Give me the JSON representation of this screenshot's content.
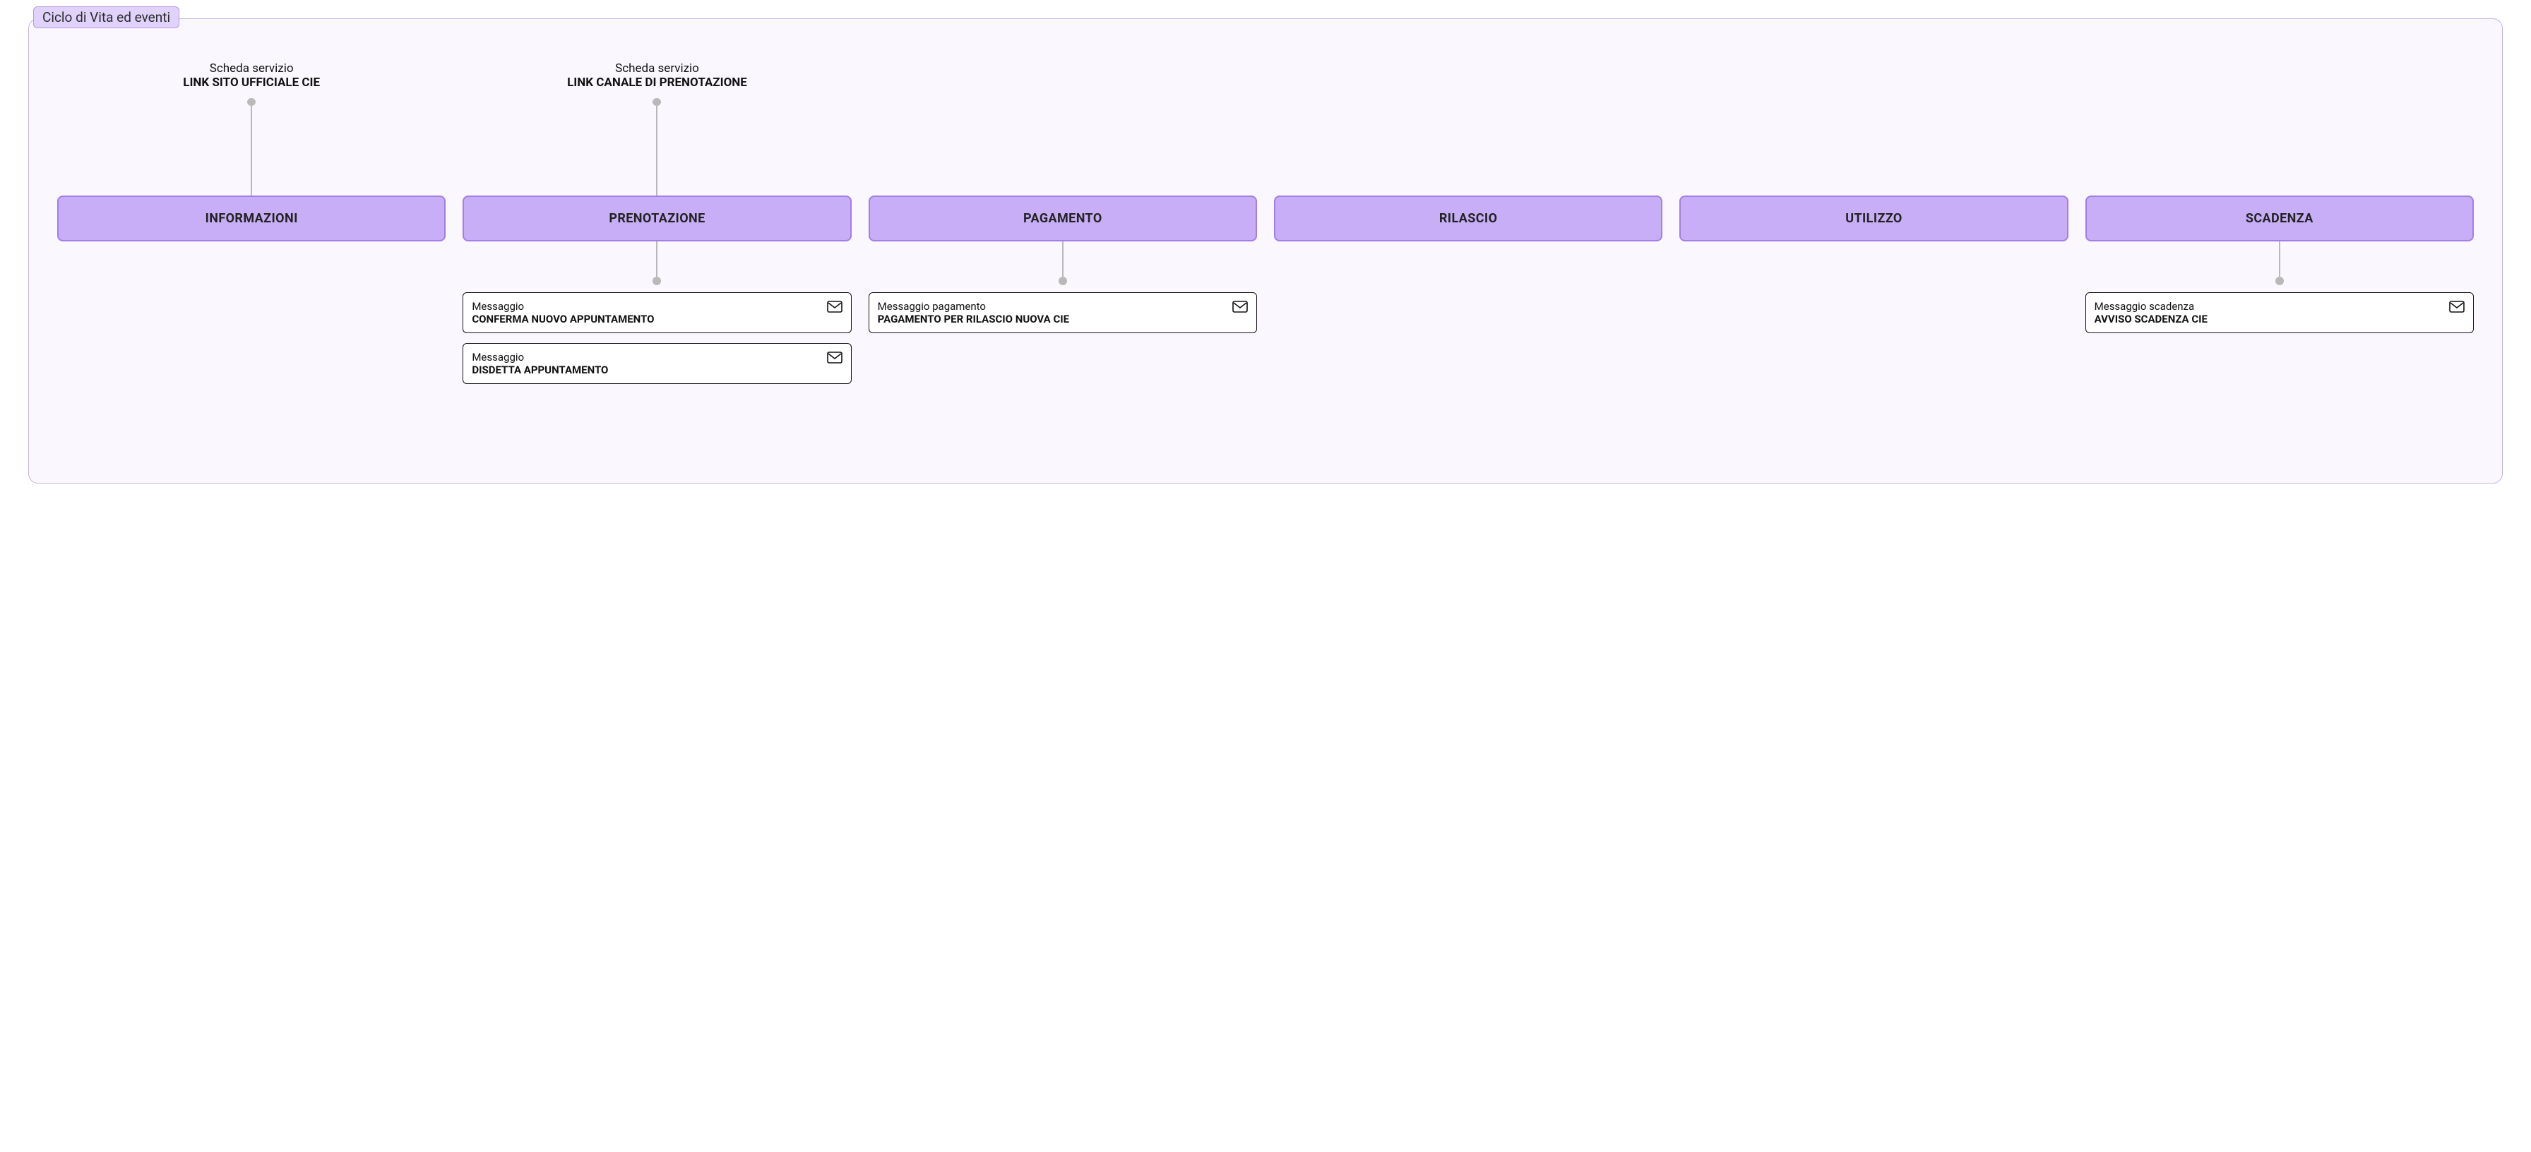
{
  "diagram": {
    "title": "Ciclo di Vita ed eventi",
    "colors": {
      "frame_bg": "#faf7ff",
      "frame_border": "#c4b3e6",
      "title_bg": "#e0d2fb",
      "title_border": "#b49be0",
      "stage_bg": "#c8aef7",
      "stage_border": "#a27ee6",
      "connector": "#b9b9b9",
      "msg_border": "#111111",
      "msg_bg": "#ffffff",
      "text": "#111111"
    },
    "stages": [
      {
        "id": "informazioni",
        "label": "INFORMAZIONI",
        "top": {
          "sub": "Scheda servizio",
          "main": "LINK SITO UFFICIALE CIE"
        },
        "bottom": []
      },
      {
        "id": "prenotazione",
        "label": "PRENOTAZIONE",
        "top": {
          "sub": "Scheda servizio",
          "main": "LINK CANALE DI PRENOTAZIONE"
        },
        "bottom": [
          {
            "kind": "Messaggio",
            "title": "CONFERMA NUOVO APPUNTAMENTO"
          },
          {
            "kind": "Messaggio",
            "title": "DISDETTA APPUNTAMENTO"
          }
        ]
      },
      {
        "id": "pagamento",
        "label": "PAGAMENTO",
        "top": null,
        "bottom": [
          {
            "kind": "Messaggio pagamento",
            "title": "PAGAMENTO PER RILASCIO NUOVA CIE"
          }
        ]
      },
      {
        "id": "rilascio",
        "label": "RILASCIO",
        "top": null,
        "bottom": []
      },
      {
        "id": "utilizzo",
        "label": "UTILIZZO",
        "top": null,
        "bottom": []
      },
      {
        "id": "scadenza",
        "label": "SCADENZA",
        "top": null,
        "bottom": [
          {
            "kind": "Messaggio scadenza",
            "title": "AVVISO SCADENZA CIE"
          }
        ]
      }
    ]
  }
}
